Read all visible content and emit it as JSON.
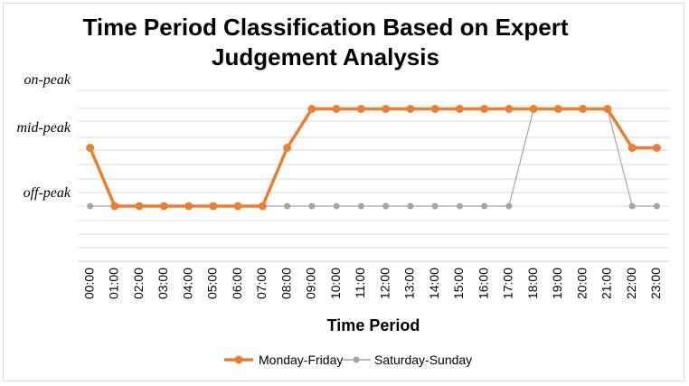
{
  "chart_data": {
    "type": "line",
    "title_line1": "Time Period Classification Based on Expert",
    "title_line2": "Judgement Analysis",
    "xlabel": "Time Period",
    "ylabel": "",
    "y_levels": [
      "off-peak",
      "mid-peak",
      "on-peak"
    ],
    "categories": [
      "00:00",
      "01:00",
      "02:00",
      "03:00",
      "04:00",
      "05:00",
      "06:00",
      "07:00",
      "08:00",
      "09:00",
      "10:00",
      "11:00",
      "12:00",
      "13:00",
      "14:00",
      "15:00",
      "16:00",
      "17:00",
      "18:00",
      "19:00",
      "20:00",
      "21:00",
      "22:00",
      "23:00"
    ],
    "series": [
      {
        "name": "Monday-Friday",
        "color": "#ED7D31",
        "values": [
          1.5,
          0,
          0,
          0,
          0,
          0,
          0,
          0,
          1.5,
          2.5,
          2.5,
          2.5,
          2.5,
          2.5,
          2.5,
          2.5,
          2.5,
          2.5,
          2.5,
          2.5,
          2.5,
          2.5,
          1.5,
          1.5
        ]
      },
      {
        "name": "Saturday-Sunday",
        "color": "#A5A5A5",
        "values": [
          0,
          0,
          0,
          0,
          0,
          0,
          0,
          0,
          0,
          0,
          0,
          0,
          0,
          0,
          0,
          0,
          0,
          0,
          2.5,
          2.5,
          2.5,
          2.5,
          0,
          0
        ]
      }
    ],
    "grid": true,
    "legend_position": "bottom"
  }
}
